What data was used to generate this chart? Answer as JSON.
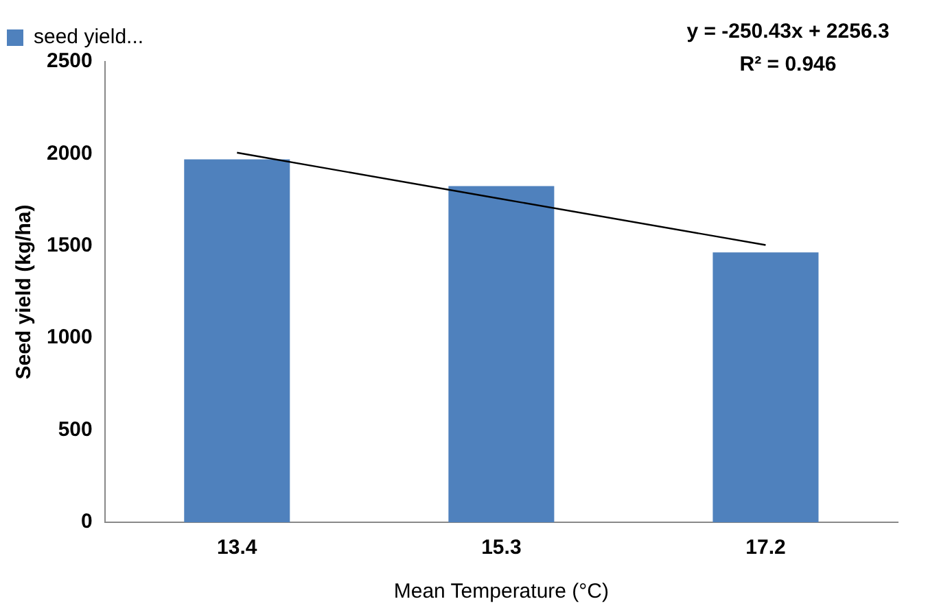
{
  "chart_data": {
    "type": "bar",
    "xlabel": "Mean Temperature (°C)",
    "ylabel": "Seed yield (kg/ha)",
    "categories": [
      "13.4",
      "15.3",
      "17.2"
    ],
    "series": [
      {
        "name": "seed yield...",
        "color": "#4f81bd",
        "values": [
          1970,
          1825,
          1465
        ]
      },
      {
        "type": "line",
        "color": "#000000",
        "values": [
          2006,
          1755,
          1505
        ],
        "marker": "none"
      }
    ],
    "ylim": [
      0,
      2500
    ],
    "yticks": [
      0,
      500,
      1000,
      1500,
      2000,
      2500
    ],
    "grid": false,
    "legend": "top left",
    "annotations": [
      "y = -250.43x + 2256.3",
      "R² = 0.946"
    ]
  }
}
